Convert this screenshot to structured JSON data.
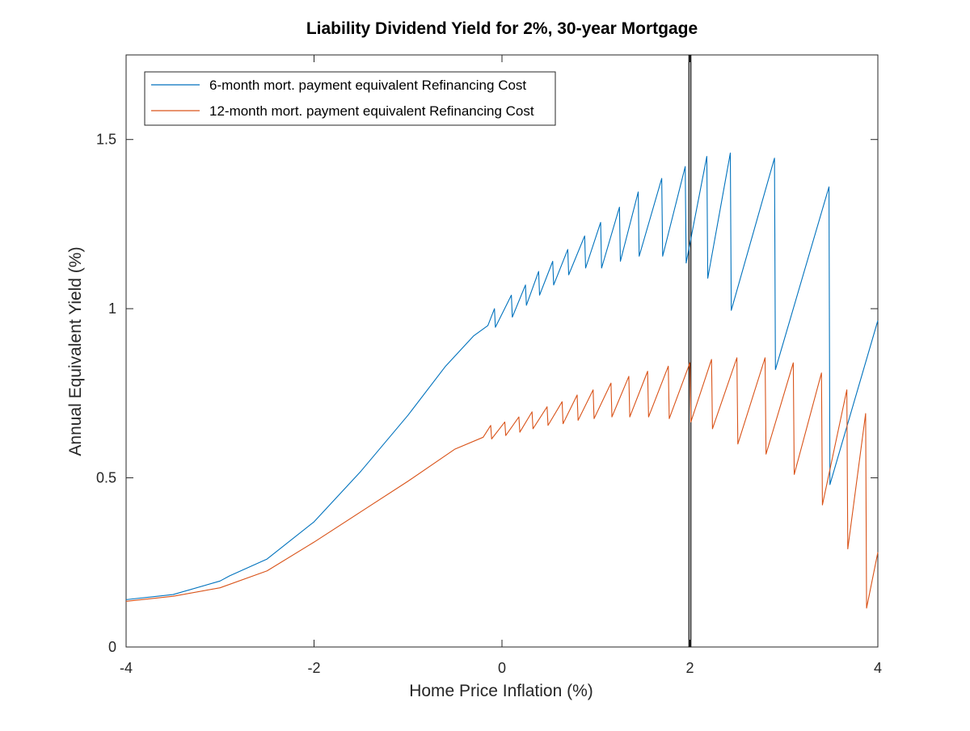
{
  "chart_data": {
    "type": "line",
    "title": "Liability Dividend Yield for 2%, 30-year Mortgage",
    "xlabel": "Home Price Inflation (%)",
    "ylabel": "Annual Equivalent Yield (%)",
    "xlim": [
      -4,
      4
    ],
    "ylim": [
      0,
      1.75
    ],
    "xticks": [
      -4,
      -2,
      0,
      2,
      4
    ],
    "xtick_labels": [
      "-4",
      "-2",
      "0",
      "2",
      "4"
    ],
    "yticks": [
      0,
      0.5,
      1,
      1.5
    ],
    "ytick_labels": [
      "0",
      "0.5",
      "1",
      "1.5"
    ],
    "grid": false,
    "legend_position": "top-left",
    "vertical_lines": [
      1.99,
      2.01
    ],
    "series": [
      {
        "name": "6-month mort. payment equivalent Refinancing Cost",
        "color": "#0072BD",
        "points": [
          [
            -4.0,
            0.14
          ],
          [
            -3.5,
            0.155
          ],
          [
            -3.0,
            0.195
          ],
          [
            -2.9,
            0.21
          ],
          [
            -2.5,
            0.26
          ],
          [
            -2.0,
            0.37
          ],
          [
            -1.5,
            0.52
          ],
          [
            -1.0,
            0.685
          ],
          [
            -0.6,
            0.83
          ],
          [
            -0.3,
            0.92
          ],
          [
            -0.15,
            0.95
          ],
          [
            -0.08,
            1.0
          ],
          [
            -0.07,
            0.945
          ],
          [
            0.1,
            1.04
          ],
          [
            0.11,
            0.975
          ],
          [
            0.25,
            1.07
          ],
          [
            0.26,
            1.01
          ],
          [
            0.39,
            1.11
          ],
          [
            0.4,
            1.04
          ],
          [
            0.54,
            1.14
          ],
          [
            0.55,
            1.07
          ],
          [
            0.7,
            1.175
          ],
          [
            0.71,
            1.1
          ],
          [
            0.88,
            1.215
          ],
          [
            0.89,
            1.12
          ],
          [
            1.05,
            1.255
          ],
          [
            1.06,
            1.12
          ],
          [
            1.25,
            1.3
          ],
          [
            1.26,
            1.14
          ],
          [
            1.45,
            1.345
          ],
          [
            1.46,
            1.155
          ],
          [
            1.7,
            1.385
          ],
          [
            1.71,
            1.155
          ],
          [
            1.95,
            1.42
          ],
          [
            1.96,
            1.135
          ],
          [
            2.18,
            1.45
          ],
          [
            2.19,
            1.09
          ],
          [
            2.43,
            1.46
          ],
          [
            2.44,
            0.995
          ],
          [
            2.9,
            1.445
          ],
          [
            2.91,
            0.82
          ],
          [
            3.48,
            1.36
          ],
          [
            3.49,
            0.48
          ],
          [
            4.0,
            0.965
          ]
        ]
      },
      {
        "name": "12-month mort. payment equivalent Refinancing Cost",
        "color": "#D95319",
        "points": [
          [
            -4.0,
            0.135
          ],
          [
            -3.5,
            0.15
          ],
          [
            -3.0,
            0.175
          ],
          [
            -2.5,
            0.225
          ],
          [
            -2.0,
            0.31
          ],
          [
            -1.5,
            0.4
          ],
          [
            -1.0,
            0.49
          ],
          [
            -0.5,
            0.585
          ],
          [
            -0.2,
            0.62
          ],
          [
            -0.12,
            0.655
          ],
          [
            -0.11,
            0.615
          ],
          [
            0.03,
            0.665
          ],
          [
            0.04,
            0.625
          ],
          [
            0.18,
            0.68
          ],
          [
            0.19,
            0.635
          ],
          [
            0.32,
            0.695
          ],
          [
            0.33,
            0.645
          ],
          [
            0.48,
            0.71
          ],
          [
            0.49,
            0.655
          ],
          [
            0.64,
            0.725
          ],
          [
            0.65,
            0.66
          ],
          [
            0.8,
            0.745
          ],
          [
            0.81,
            0.67
          ],
          [
            0.97,
            0.76
          ],
          [
            0.98,
            0.675
          ],
          [
            1.16,
            0.78
          ],
          [
            1.17,
            0.68
          ],
          [
            1.35,
            0.8
          ],
          [
            1.36,
            0.68
          ],
          [
            1.55,
            0.815
          ],
          [
            1.56,
            0.68
          ],
          [
            1.77,
            0.83
          ],
          [
            1.78,
            0.675
          ],
          [
            2.0,
            0.84
          ],
          [
            2.01,
            0.665
          ],
          [
            2.23,
            0.85
          ],
          [
            2.24,
            0.645
          ],
          [
            2.5,
            0.855
          ],
          [
            2.51,
            0.6
          ],
          [
            2.8,
            0.855
          ],
          [
            2.81,
            0.57
          ],
          [
            3.1,
            0.84
          ],
          [
            3.11,
            0.51
          ],
          [
            3.4,
            0.81
          ],
          [
            3.41,
            0.42
          ],
          [
            3.67,
            0.76
          ],
          [
            3.68,
            0.29
          ],
          [
            3.87,
            0.69
          ],
          [
            3.88,
            0.115
          ],
          [
            4.0,
            0.28
          ]
        ]
      }
    ]
  }
}
